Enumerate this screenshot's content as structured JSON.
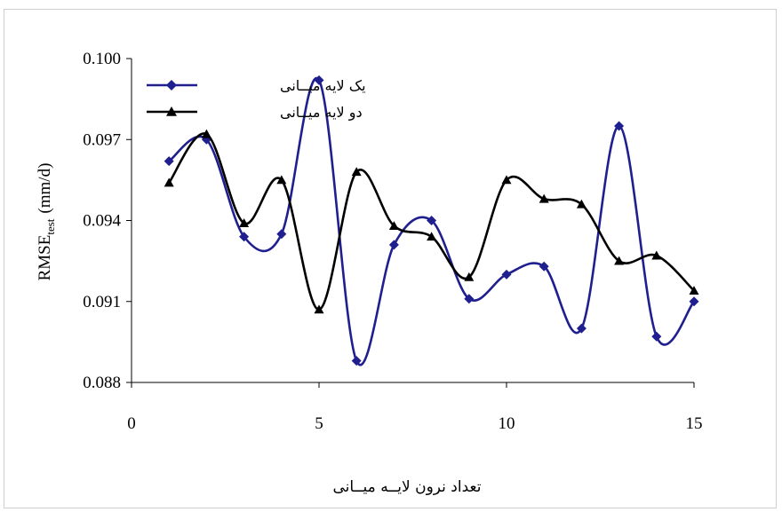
{
  "chart_data": {
    "type": "line",
    "xlabel": "تعداد نرون لایــه میــانی",
    "ylabel_main": "RMSE",
    "ylabel_sub": "test",
    "ylabel_unit": "(mm/d)",
    "xlim": [
      0,
      15
    ],
    "ylim": [
      0.088,
      0.1
    ],
    "xticks": [
      0,
      5,
      10,
      15
    ],
    "xtick_labels": [
      "0",
      "5",
      "10",
      "15"
    ],
    "yticks": [
      0.088,
      0.091,
      0.094,
      0.097,
      0.1
    ],
    "ytick_labels": [
      "0.088",
      "0.091",
      "0.094",
      "0.097",
      "0.100"
    ],
    "grid": false,
    "legend_position": "top-left",
    "x": [
      1,
      2,
      3,
      4,
      5,
      6,
      7,
      8,
      9,
      10,
      11,
      12,
      13,
      14,
      15
    ],
    "series": [
      {
        "name": "یک لایه میــانی",
        "color": "#1f1f8f",
        "marker": "diamond",
        "values": [
          0.0962,
          0.097,
          0.0934,
          0.0935,
          0.0992,
          0.0888,
          0.0931,
          0.094,
          0.0911,
          0.092,
          0.0923,
          0.09,
          0.0975,
          0.0897,
          0.091
        ]
      },
      {
        "name": "دو لایه میــانی",
        "color": "#000000",
        "marker": "triangle",
        "values": [
          0.0954,
          0.0972,
          0.0939,
          0.0955,
          0.0907,
          0.0958,
          0.0938,
          0.0934,
          0.0919,
          0.0955,
          0.0948,
          0.0946,
          0.0925,
          0.0927,
          0.0914
        ]
      }
    ]
  }
}
